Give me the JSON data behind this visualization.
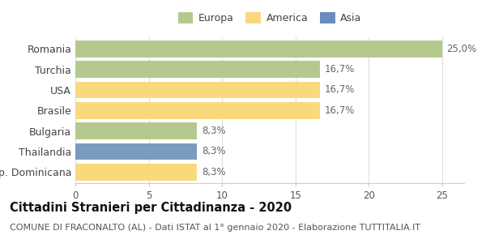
{
  "categories": [
    "Romania",
    "Turchia",
    "USA",
    "Brasile",
    "Bulgaria",
    "Thailandia",
    "Rep. Dominicana"
  ],
  "values": [
    25.0,
    16.7,
    16.7,
    16.7,
    8.3,
    8.3,
    8.3
  ],
  "labels": [
    "25,0%",
    "16,7%",
    "16,7%",
    "16,7%",
    "8,3%",
    "8,3%",
    "8,3%"
  ],
  "colors": [
    "#b5c98e",
    "#b5c98e",
    "#f9d97c",
    "#f9d97c",
    "#b5c98e",
    "#7b9bbf",
    "#f9d97c"
  ],
  "legend": [
    {
      "label": "Europa",
      "color": "#b5c98e"
    },
    {
      "label": "America",
      "color": "#f9d97c"
    },
    {
      "label": "Asia",
      "color": "#6b8cba"
    }
  ],
  "xlim": [
    0,
    26.5
  ],
  "xticks": [
    0,
    5,
    10,
    15,
    20,
    25
  ],
  "title": "Cittadini Stranieri per Cittadinanza - 2020",
  "subtitle": "COMUNE DI FRACONALTO (AL) - Dati ISTAT al 1° gennaio 2020 - Elaborazione TUTTITALIA.IT",
  "background_color": "#ffffff",
  "bar_height": 0.82,
  "label_fontsize": 8.5,
  "ylabel_fontsize": 9,
  "title_fontsize": 10.5,
  "subtitle_fontsize": 8
}
